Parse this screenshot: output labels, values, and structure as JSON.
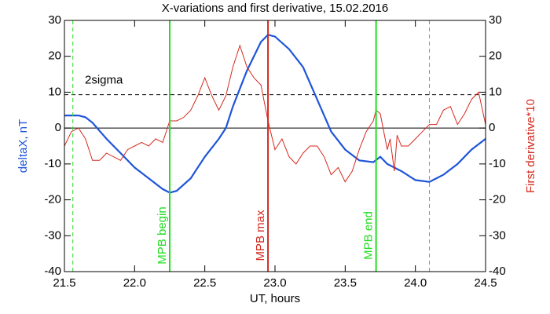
{
  "chart_data": {
    "type": "line",
    "title": "X-variations and first derivative, 15.02.2016",
    "x_label": "UT, hours",
    "y_label": "deltaX, nT",
    "y2_label": "First derivative*10",
    "xlim": [
      21.5,
      24.5
    ],
    "xticks": [
      21.5,
      {
        "value": 22,
        "label": "22.0"
      },
      22.5,
      {
        "value": 23,
        "label": "23.0"
      },
      23.5,
      {
        "value": 24,
        "label": "24.0"
      },
      24.5
    ],
    "ylim": [
      -40,
      30
    ],
    "yticks": [
      -40,
      -30,
      -20,
      -10,
      0,
      10,
      20,
      30
    ],
    "y2lim": [
      -40,
      30
    ],
    "y2ticks": [
      -40,
      -30,
      -20,
      -10,
      0,
      10,
      20,
      30
    ],
    "series": [
      {
        "name": "deltaX, nT",
        "color": "#1f55d8",
        "x": [
          21.5,
          21.6,
          21.65,
          21.7,
          21.8,
          21.9,
          22.0,
          22.1,
          22.2,
          22.25,
          22.3,
          22.4,
          22.5,
          22.6,
          22.65,
          22.7,
          22.8,
          22.9,
          22.95,
          23.0,
          23.1,
          23.2,
          23.3,
          23.4,
          23.5,
          23.6,
          23.7,
          23.75,
          23.8,
          23.9,
          24.0,
          24.1,
          24.2,
          24.3,
          24.4,
          24.5
        ],
        "values": [
          3.5,
          3.5,
          3,
          1.5,
          -3,
          -7,
          -11,
          -14,
          -17,
          -18,
          -17.5,
          -14,
          -8,
          -3,
          0,
          6,
          16,
          24,
          26,
          25.5,
          22,
          17,
          8,
          -1,
          -6,
          -9,
          -9.5,
          -8,
          -10,
          -12,
          -14.5,
          -15,
          -13,
          -10,
          -6,
          -3
        ]
      },
      {
        "name": "First derivative*10",
        "color": "#d42a1e",
        "axis": "y2",
        "x": [
          21.5,
          21.55,
          21.6,
          21.65,
          21.7,
          21.75,
          21.8,
          21.85,
          21.9,
          21.95,
          22.0,
          22.05,
          22.1,
          22.15,
          22.2,
          22.25,
          22.3,
          22.35,
          22.4,
          22.45,
          22.5,
          22.55,
          22.6,
          22.65,
          22.7,
          22.75,
          22.8,
          22.85,
          22.9,
          22.95,
          23.0,
          23.05,
          23.1,
          23.15,
          23.2,
          23.25,
          23.3,
          23.35,
          23.4,
          23.45,
          23.5,
          23.55,
          23.6,
          23.65,
          23.7,
          23.72,
          23.75,
          23.8,
          23.82,
          23.85,
          23.87,
          23.9,
          23.95,
          24.0,
          24.05,
          24.1,
          24.15,
          24.2,
          24.25,
          24.3,
          24.35,
          24.4,
          24.45,
          24.5
        ],
        "values": [
          -5,
          -1,
          0,
          -3,
          -9,
          -9,
          -7,
          -8,
          -9,
          -6,
          -5,
          -4,
          -5,
          -3,
          -4,
          2,
          2,
          3,
          5,
          9,
          14,
          9,
          5,
          9,
          17,
          23,
          17,
          14,
          12,
          2,
          -6,
          -3,
          -8,
          -10,
          -7,
          -5,
          -5,
          -8,
          -13,
          -11,
          -15,
          -12,
          -6,
          -1,
          2,
          5,
          4,
          -6,
          -3,
          -12,
          -2,
          -5,
          -5,
          -3,
          -1,
          1,
          1,
          5,
          6,
          1,
          4,
          8,
          10,
          1
        ]
      }
    ],
    "hlines": [
      {
        "y": 0,
        "color": "#000000",
        "dashed": false
      },
      {
        "y": 9.3,
        "color": "#000000",
        "dashed": true,
        "label": "2sigma"
      }
    ],
    "vlines": [
      {
        "x": 21.56,
        "color": "#22dd22",
        "dashed": true
      },
      {
        "x": 22.25,
        "color": "#22dd22",
        "dashed": false,
        "label": "MPB begin"
      },
      {
        "x": 22.95,
        "color": "#d42a1e",
        "dashed": false,
        "label": "MPB max"
      },
      {
        "x": 23.72,
        "color": "#22dd22",
        "dashed": false,
        "label": "MPB end"
      },
      {
        "x": 24.1,
        "color": "#22dd22",
        "dashed": true
      }
    ]
  }
}
